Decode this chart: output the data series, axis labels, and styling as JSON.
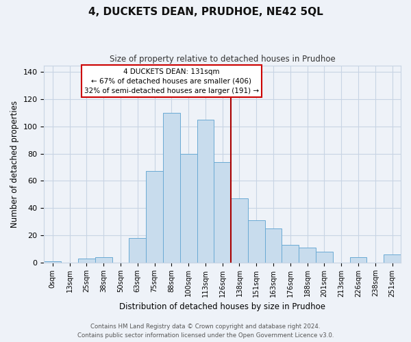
{
  "title": "4, DUCKETS DEAN, PRUDHOE, NE42 5QL",
  "subtitle": "Size of property relative to detached houses in Prudhoe",
  "xlabel": "Distribution of detached houses by size in Prudhoe",
  "ylabel": "Number of detached properties",
  "bar_labels": [
    "0sqm",
    "13sqm",
    "25sqm",
    "38sqm",
    "50sqm",
    "63sqm",
    "75sqm",
    "88sqm",
    "100sqm",
    "113sqm",
    "126sqm",
    "138sqm",
    "151sqm",
    "163sqm",
    "176sqm",
    "188sqm",
    "201sqm",
    "213sqm",
    "226sqm",
    "238sqm",
    "251sqm"
  ],
  "bar_values": [
    1,
    0,
    3,
    4,
    0,
    18,
    67,
    110,
    80,
    105,
    74,
    47,
    31,
    25,
    13,
    11,
    8,
    0,
    4,
    0,
    6
  ],
  "bar_color": "#c8dced",
  "bar_edge_color": "#6aaad4",
  "vline_x": 10.5,
  "vline_color": "#aa0000",
  "annotation_title": "4 DUCKETS DEAN: 131sqm",
  "annotation_line1": "← 67% of detached houses are smaller (406)",
  "annotation_line2": "32% of semi-detached houses are larger (191) →",
  "annotation_box_facecolor": "#ffffff",
  "annotation_border_color": "#cc0000",
  "ylim": [
    0,
    145
  ],
  "yticks": [
    0,
    20,
    40,
    60,
    80,
    100,
    120,
    140
  ],
  "footer1": "Contains HM Land Registry data © Crown copyright and database right 2024.",
  "footer2": "Contains public sector information licensed under the Open Government Licence v3.0.",
  "bg_color": "#eef2f8",
  "plot_bg_color": "#eef2f8",
  "grid_color": "#c8d4e4"
}
